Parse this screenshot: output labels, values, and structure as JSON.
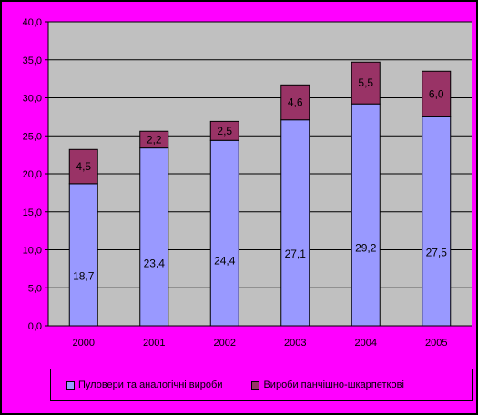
{
  "chart_data": {
    "type": "bar",
    "stacked": true,
    "title": "",
    "xlabel": "",
    "ylabel": "",
    "categories": [
      "2000",
      "2001",
      "2002",
      "2003",
      "2004",
      "2005"
    ],
    "series": [
      {
        "name": "Пуловери та аналогічні вироби",
        "values": [
          18.7,
          23.4,
          24.4,
          27.1,
          29.2,
          27.5
        ],
        "labels": [
          "18,7",
          "23,4",
          "24,4",
          "27,1",
          "29,2",
          "27,5"
        ],
        "color": "#9999FF"
      },
      {
        "name": "Вироби панчішно-шкарпеткові",
        "values": [
          4.5,
          2.2,
          2.5,
          4.6,
          5.5,
          6.0
        ],
        "labels": [
          "4,5",
          "2,2",
          "2,5",
          "4,6",
          "5,5",
          "6,0"
        ],
        "color": "#993366"
      }
    ],
    "ylim": [
      0,
      40
    ],
    "yticks": [
      0,
      5,
      10,
      15,
      20,
      25,
      30,
      35,
      40
    ],
    "ytick_labels": [
      "0,0",
      "5,0",
      "10,0",
      "15,0",
      "20,0",
      "25,0",
      "30,0",
      "35,0",
      "40,0"
    ],
    "grid": true,
    "legend_position": "bottom"
  },
  "colors": {
    "background": "#FF00FF",
    "plot_area": "#C0C0C0",
    "gridline": "#000000"
  }
}
